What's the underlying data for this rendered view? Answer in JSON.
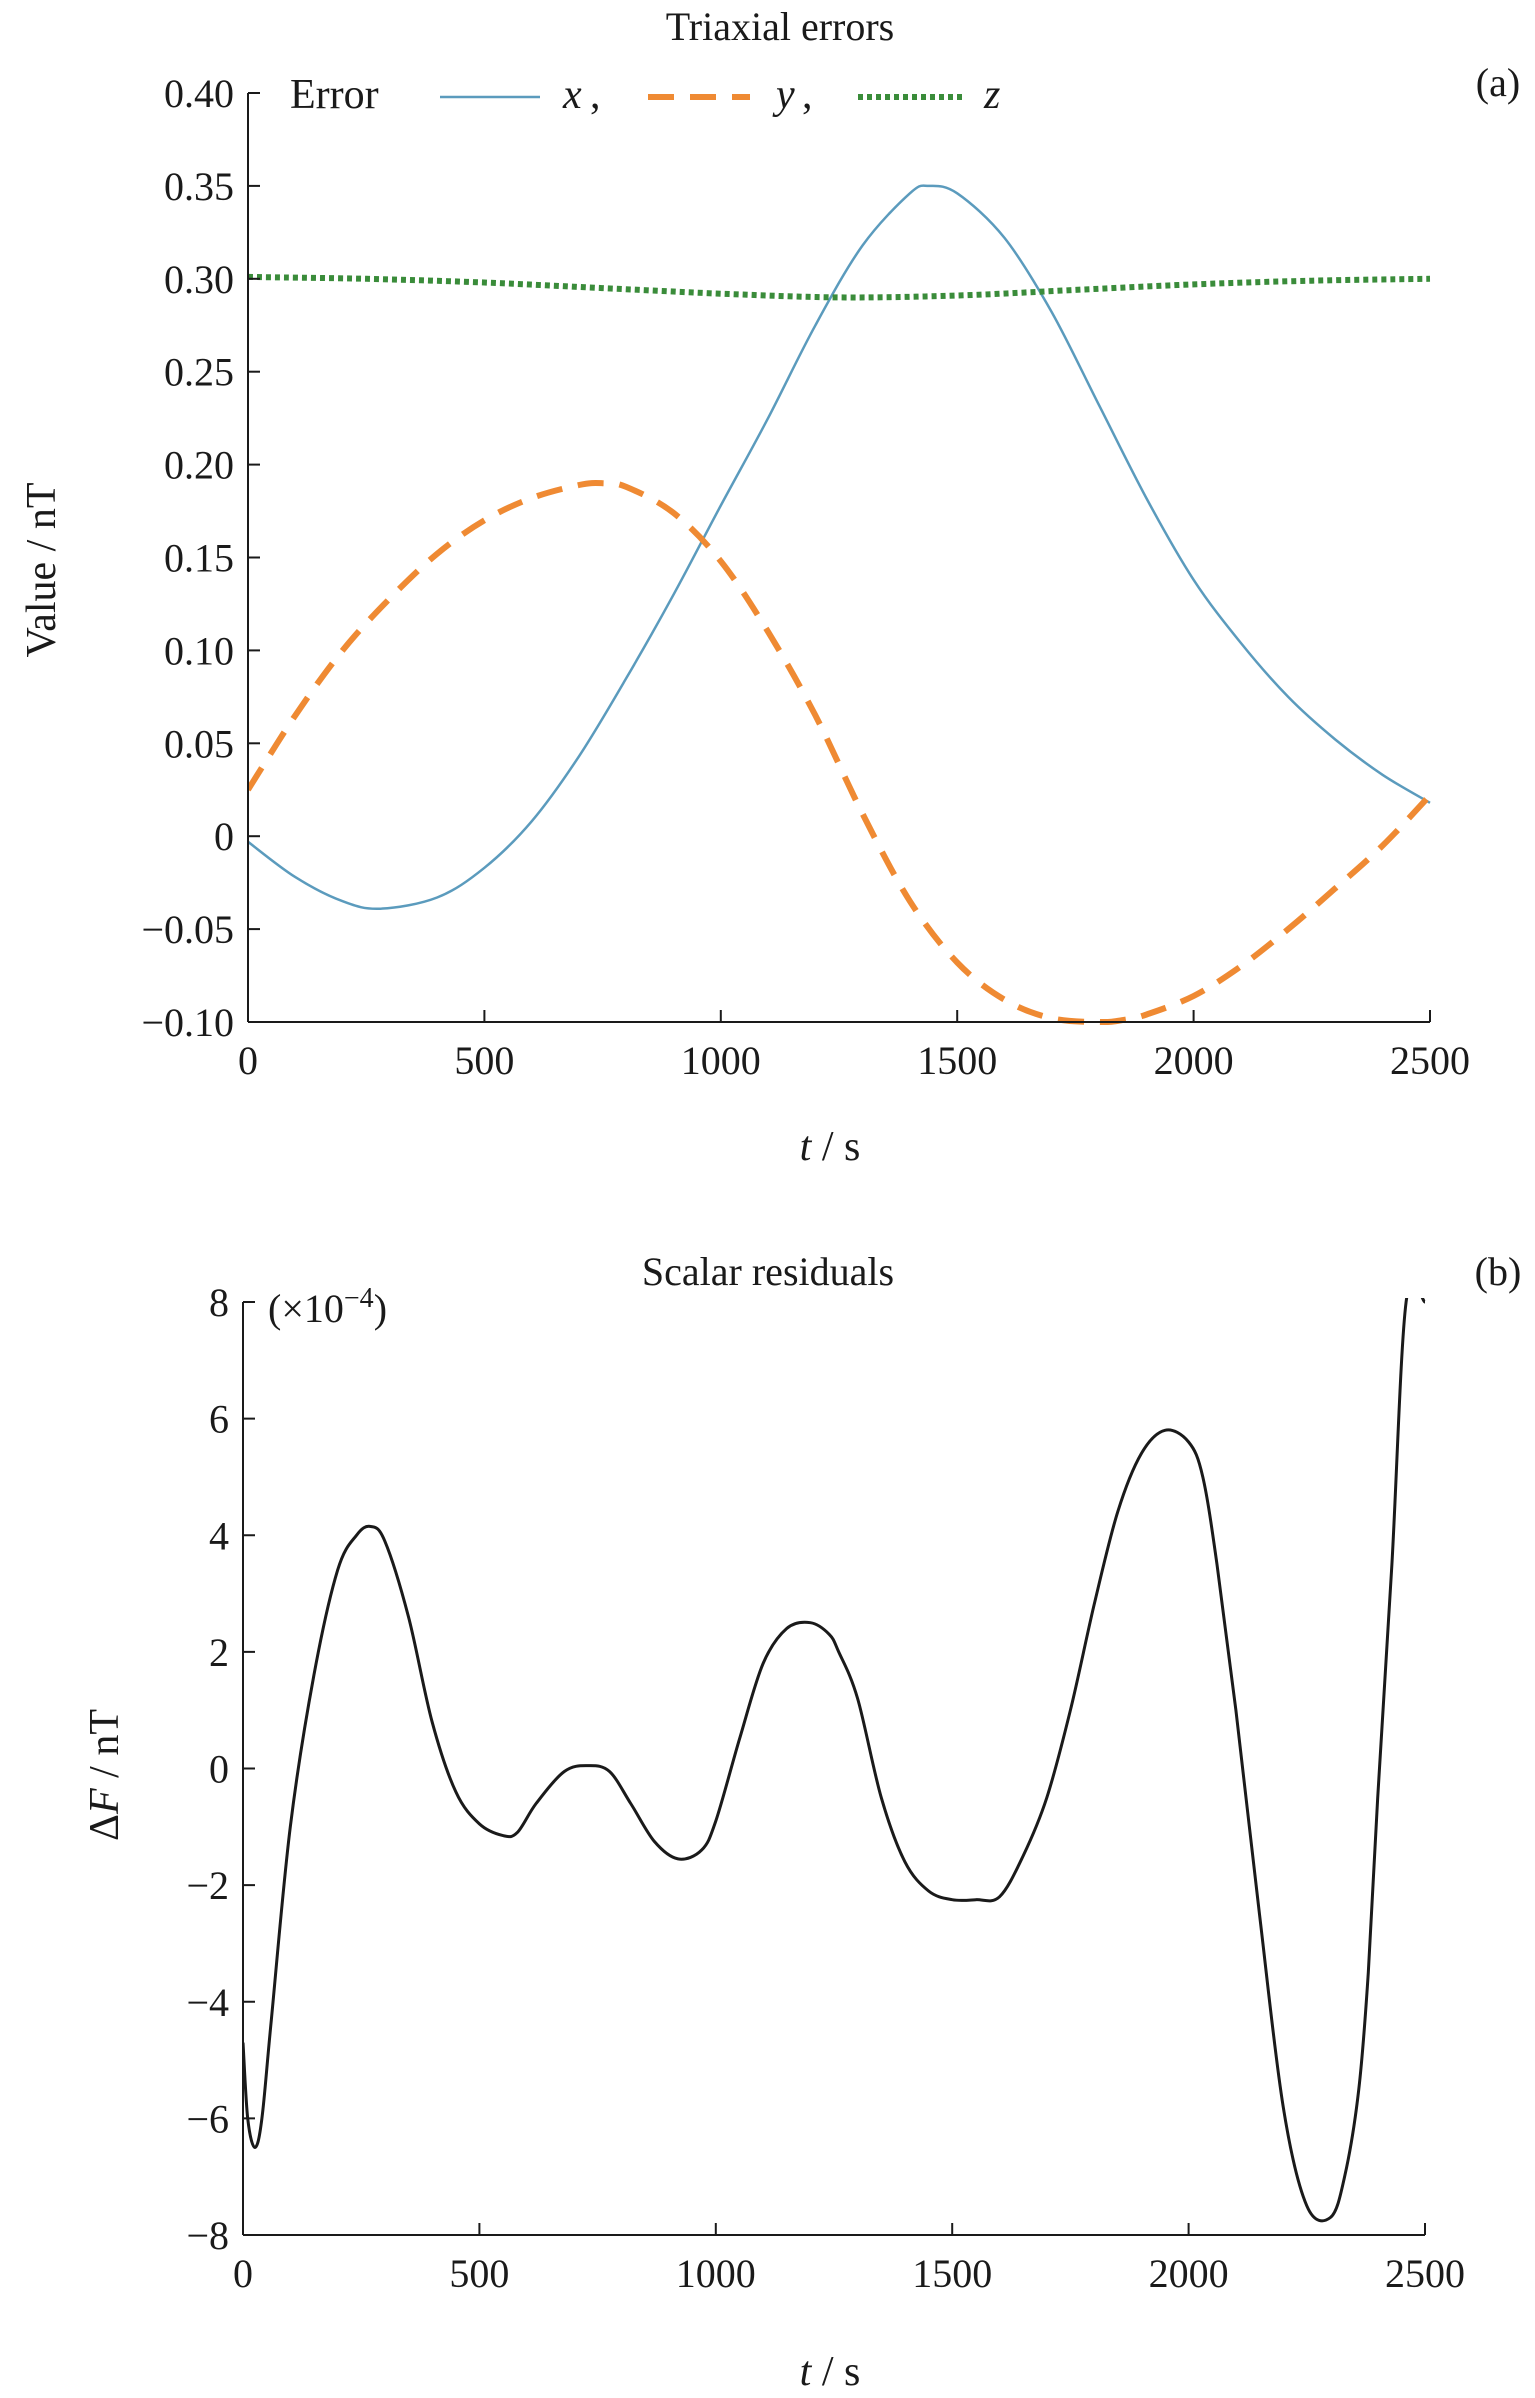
{
  "chart_data": [
    {
      "type": "line",
      "panel_label": "(a)",
      "title": "Triaxial errors",
      "xlabel_var": "t",
      "xlabel_unit": " / s",
      "ylabel": "Value / nT",
      "xlim": [
        0,
        2500
      ],
      "ylim": [
        -0.1,
        0.4
      ],
      "xticks": [
        0,
        500,
        1000,
        1500,
        2000,
        2500
      ],
      "xtick_labels": [
        "0",
        "500",
        "1000",
        "1500",
        "2000",
        "2500"
      ],
      "yticks": [
        0.4,
        0.35,
        0.3,
        0.25,
        0.2,
        0.15,
        0.1,
        0.05,
        0,
        -0.05,
        -0.1
      ],
      "ytick_labels": [
        "0.40",
        "0.35",
        "0.30",
        "0.25",
        "0.20",
        "0.15",
        "0.10",
        "0.05",
        "0",
        "−0.05",
        "−0.10"
      ],
      "legend": {
        "title": "Error",
        "placement": "top",
        "entries": [
          "x",
          "y",
          "z"
        ],
        "separator": ","
      },
      "series": [
        {
          "name": "x",
          "color": "#5b9bbd",
          "style": "solid",
          "x": [
            0,
            100,
            200,
            280,
            400,
            500,
            600,
            700,
            800,
            900,
            1000,
            1100,
            1200,
            1300,
            1400,
            1440,
            1500,
            1600,
            1700,
            1800,
            1900,
            2000,
            2100,
            2200,
            2300,
            2400,
            2500
          ],
          "y": [
            -0.003,
            -0.022,
            -0.035,
            -0.039,
            -0.033,
            -0.017,
            0.008,
            0.043,
            0.085,
            0.13,
            0.178,
            0.225,
            0.275,
            0.318,
            0.346,
            0.35,
            0.346,
            0.322,
            0.282,
            0.232,
            0.182,
            0.138,
            0.104,
            0.075,
            0.052,
            0.033,
            0.018
          ]
        },
        {
          "name": "y",
          "color": "#ef8a33",
          "style": "dashed",
          "x": [
            0,
            100,
            200,
            300,
            400,
            500,
            600,
            700,
            750,
            800,
            900,
            1000,
            1100,
            1200,
            1300,
            1400,
            1500,
            1600,
            1700,
            1800,
            1850,
            1900,
            2000,
            2100,
            2200,
            2300,
            2400,
            2500
          ],
          "y": [
            0.025,
            0.065,
            0.1,
            0.128,
            0.152,
            0.17,
            0.182,
            0.189,
            0.19,
            0.188,
            0.174,
            0.148,
            0.11,
            0.065,
            0.012,
            -0.035,
            -0.068,
            -0.088,
            -0.098,
            -0.1,
            -0.099,
            -0.096,
            -0.086,
            -0.07,
            -0.05,
            -0.028,
            -0.005,
            0.022
          ]
        },
        {
          "name": "z",
          "color": "#3a8c3a",
          "style": "dotted",
          "x": [
            0,
            250,
            500,
            750,
            1000,
            1250,
            1500,
            1750,
            2000,
            2250,
            2500
          ],
          "y": [
            0.301,
            0.3,
            0.298,
            0.295,
            0.292,
            0.29,
            0.291,
            0.294,
            0.297,
            0.299,
            0.3
          ]
        }
      ]
    },
    {
      "type": "line",
      "panel_label": "(b)",
      "title": "Scalar residuals",
      "xlabel_var": "t",
      "xlabel_unit": " / s",
      "ylabel_prefix": "Δ",
      "ylabel_var": "F",
      "ylabel_unit": " / nT",
      "scale_note": "(×10⁻⁴)",
      "xlim": [
        0,
        2500
      ],
      "ylim": [
        -8,
        8
      ],
      "xticks": [
        0,
        500,
        1000,
        1500,
        2000,
        2500
      ],
      "xtick_labels": [
        "0",
        "500",
        "1000",
        "1500",
        "2000",
        "2500"
      ],
      "yticks": [
        8,
        6,
        4,
        2,
        0,
        -2,
        -4,
        -6,
        -8
      ],
      "ytick_labels": [
        "8",
        "6",
        "4",
        "2",
        "0",
        "−2",
        "−4",
        "−6",
        "−8"
      ],
      "series": [
        {
          "color": "#1a1a1a",
          "style": "solid",
          "x": [
            0,
            10,
            25,
            40,
            60,
            100,
            150,
            200,
            240,
            270,
            300,
            350,
            400,
            450,
            500,
            550,
            580,
            620,
            680,
            730,
            775,
            820,
            870,
            920,
            970,
            1000,
            1050,
            1100,
            1150,
            1200,
            1240,
            1260,
            1300,
            1350,
            1400,
            1450,
            1500,
            1550,
            1600,
            1650,
            1700,
            1750,
            1800,
            1850,
            1900,
            1950,
            2000,
            2030,
            2060,
            2100,
            2150,
            2200,
            2250,
            2300,
            2330,
            2360,
            2380,
            2400,
            2430,
            2460,
            2500
          ],
          "y": [
            -4.7,
            -6.0,
            -6.5,
            -6.0,
            -4.3,
            -1.0,
            1.6,
            3.4,
            4.0,
            4.15,
            3.9,
            2.6,
            0.8,
            -0.4,
            -0.95,
            -1.15,
            -1.1,
            -0.6,
            -0.05,
            0.05,
            -0.05,
            -0.6,
            -1.25,
            -1.55,
            -1.4,
            -0.9,
            0.5,
            1.8,
            2.4,
            2.5,
            2.3,
            2.0,
            1.2,
            -0.5,
            -1.6,
            -2.1,
            -2.25,
            -2.25,
            -2.2,
            -1.5,
            -0.5,
            1.0,
            2.8,
            4.4,
            5.4,
            5.8,
            5.6,
            5.0,
            3.5,
            1.0,
            -2.5,
            -5.8,
            -7.5,
            -7.7,
            -7.0,
            -5.5,
            -3.5,
            -0.5,
            3.5,
            8.0,
            8.0
          ]
        }
      ]
    }
  ]
}
